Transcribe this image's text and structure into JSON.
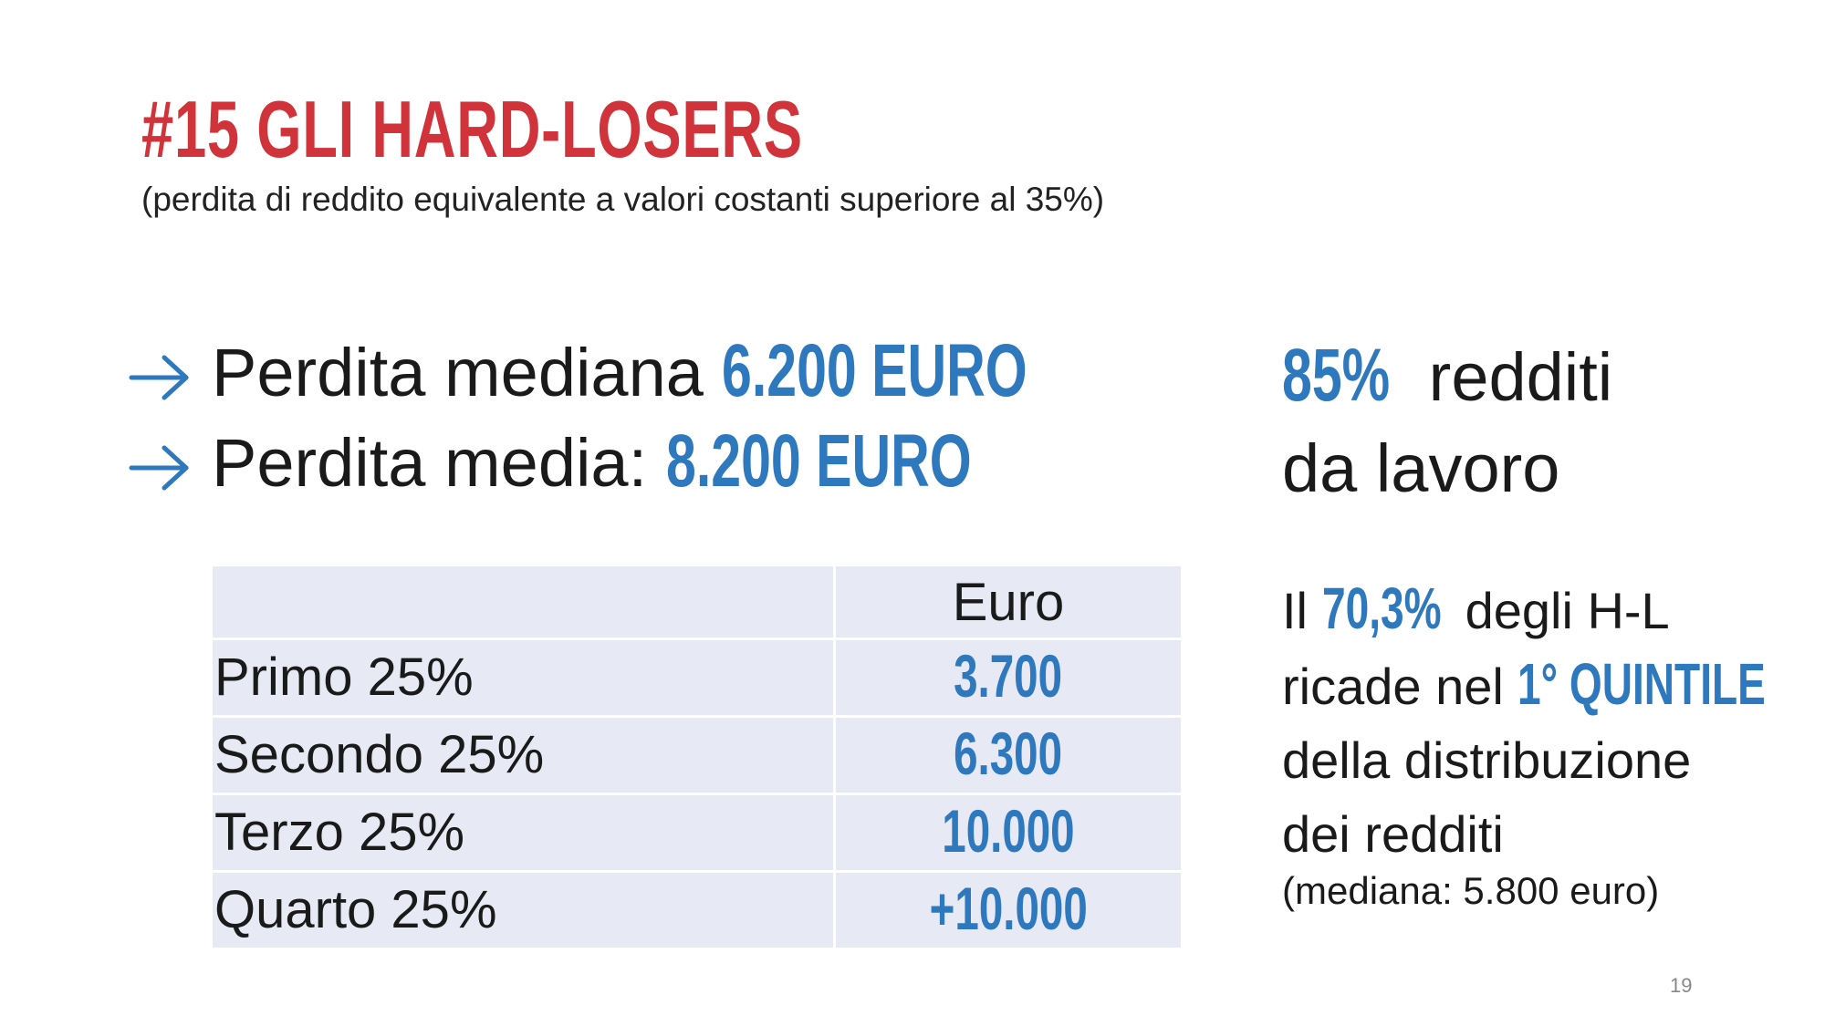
{
  "slide": {
    "title": "#15 GLI HARD-LOSERS",
    "subtitle": "(perdita di reddito equivalente a valori costanti superiore al 35%)",
    "page_number": "19"
  },
  "bullets": [
    {
      "icon": "arrow-right-icon",
      "text": "Perdita mediana ",
      "value": "6.200 EURO"
    },
    {
      "icon": "arrow-right-icon",
      "text": "Perdita media: ",
      "value": "8.200 EURO"
    }
  ],
  "table": {
    "header": [
      "",
      "Euro"
    ],
    "rows": [
      {
        "label": "Primo 25%",
        "value": "3.700"
      },
      {
        "label": "Secondo 25%",
        "value": "6.300"
      },
      {
        "label": "Terzo 25%",
        "value": "10.000"
      },
      {
        "label": "Quarto 25%",
        "value": "+10.000"
      }
    ]
  },
  "side": {
    "stat_value": "85%",
    "stat_text_1": " redditi",
    "stat_text_2": "da lavoro",
    "line1_pre": "Il ",
    "line1_value": "70,3%",
    "line1_post": " degli H-L",
    "line2_pre": "ricade nel ",
    "line2_value": "1° QUINTILE",
    "line3": "della distribuzione",
    "line4": "dei redditi",
    "note": "(mediana: 5.800 euro)"
  },
  "colors": {
    "title_red": "#d1333a",
    "accent_blue": "#2e78bd",
    "table_bg": "#e7e9f4"
  }
}
